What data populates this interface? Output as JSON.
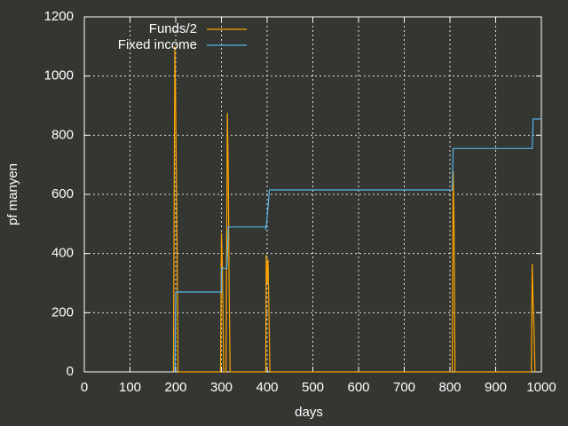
{
  "chart_data": {
    "type": "line",
    "x_label": "days",
    "y_label": "pf manyen",
    "xlim": [
      0,
      1000
    ],
    "xticks": [
      0,
      100,
      200,
      300,
      400,
      500,
      600,
      700,
      800,
      900,
      1000
    ],
    "ylim": [
      0,
      1200
    ],
    "yticks": [
      0,
      200,
      400,
      600,
      800,
      1000,
      1200
    ],
    "grid": true,
    "legend": "top-left",
    "series": [
      {
        "name": "Funds/2",
        "color": "#ffa500",
        "x": [
          195,
          198,
          200,
          203,
          205,
          298,
          300,
          302,
          305,
          310,
          313,
          315,
          317,
          319,
          397,
          398,
          400,
          402,
          404,
          406,
          805,
          807,
          809,
          811,
          978,
          980,
          982,
          984,
          986
        ],
        "values": [
          0,
          1100,
          880,
          420,
          0,
          0,
          470,
          350,
          0,
          0,
          875,
          670,
          250,
          0,
          0,
          395,
          300,
          380,
          200,
          0,
          0,
          680,
          480,
          0,
          0,
          365,
          230,
          140,
          0
        ]
      },
      {
        "name": "Fixed income",
        "color": "#56b4e9",
        "x": [
          198,
          200,
          300,
          300,
          312,
          315,
          397,
          397,
          400,
          405,
          805,
          807,
          980,
          982,
          1000
        ],
        "values": [
          0,
          270,
          270,
          350,
          350,
          490,
          490,
          480,
          520,
          615,
          615,
          755,
          755,
          855,
          855
        ]
      }
    ]
  }
}
